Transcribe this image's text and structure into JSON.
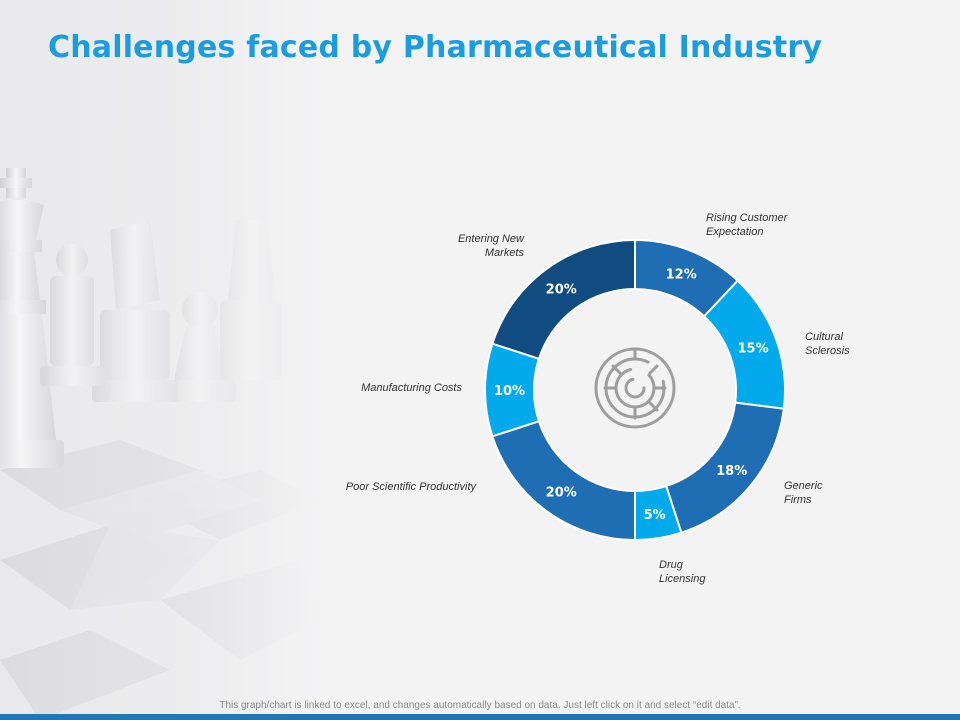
{
  "title": "Challenges faced by Pharmaceutical Industry",
  "footnote": "This graph/chart is linked to excel, and changes automatically based on data. Just left click on it and select “edit data”.",
  "center_icon": "maze-icon",
  "chart_data": {
    "type": "pie",
    "donut": true,
    "categories": [
      "Rising Customer Expectation",
      "Cultural Sclerosis",
      "Generic Firms",
      "Drug Licensing",
      "Poor Scientific Productivity",
      "Manufacturing Costs",
      "Entering New Markets"
    ],
    "category_lines": [
      [
        "Rising Customer",
        "Expectation"
      ],
      [
        "Cultural",
        "Sclerosis"
      ],
      [
        "Generic",
        "Firms"
      ],
      [
        "Drug",
        "Licensing"
      ],
      [
        "Poor Scientific Productivity"
      ],
      [
        "Manufacturing Costs"
      ],
      [
        "Entering New",
        "Markets"
      ]
    ],
    "values": [
      12,
      15,
      18,
      5,
      20,
      10,
      20
    ],
    "value_labels": [
      "12%",
      "15%",
      "18%",
      "5%",
      "20%",
      "10%",
      "20%"
    ],
    "colors": [
      "#1f6db3",
      "#03aaeb",
      "#1f6db3",
      "#03aaeb",
      "#1f6db3",
      "#03aaeb",
      "#114c80"
    ]
  }
}
